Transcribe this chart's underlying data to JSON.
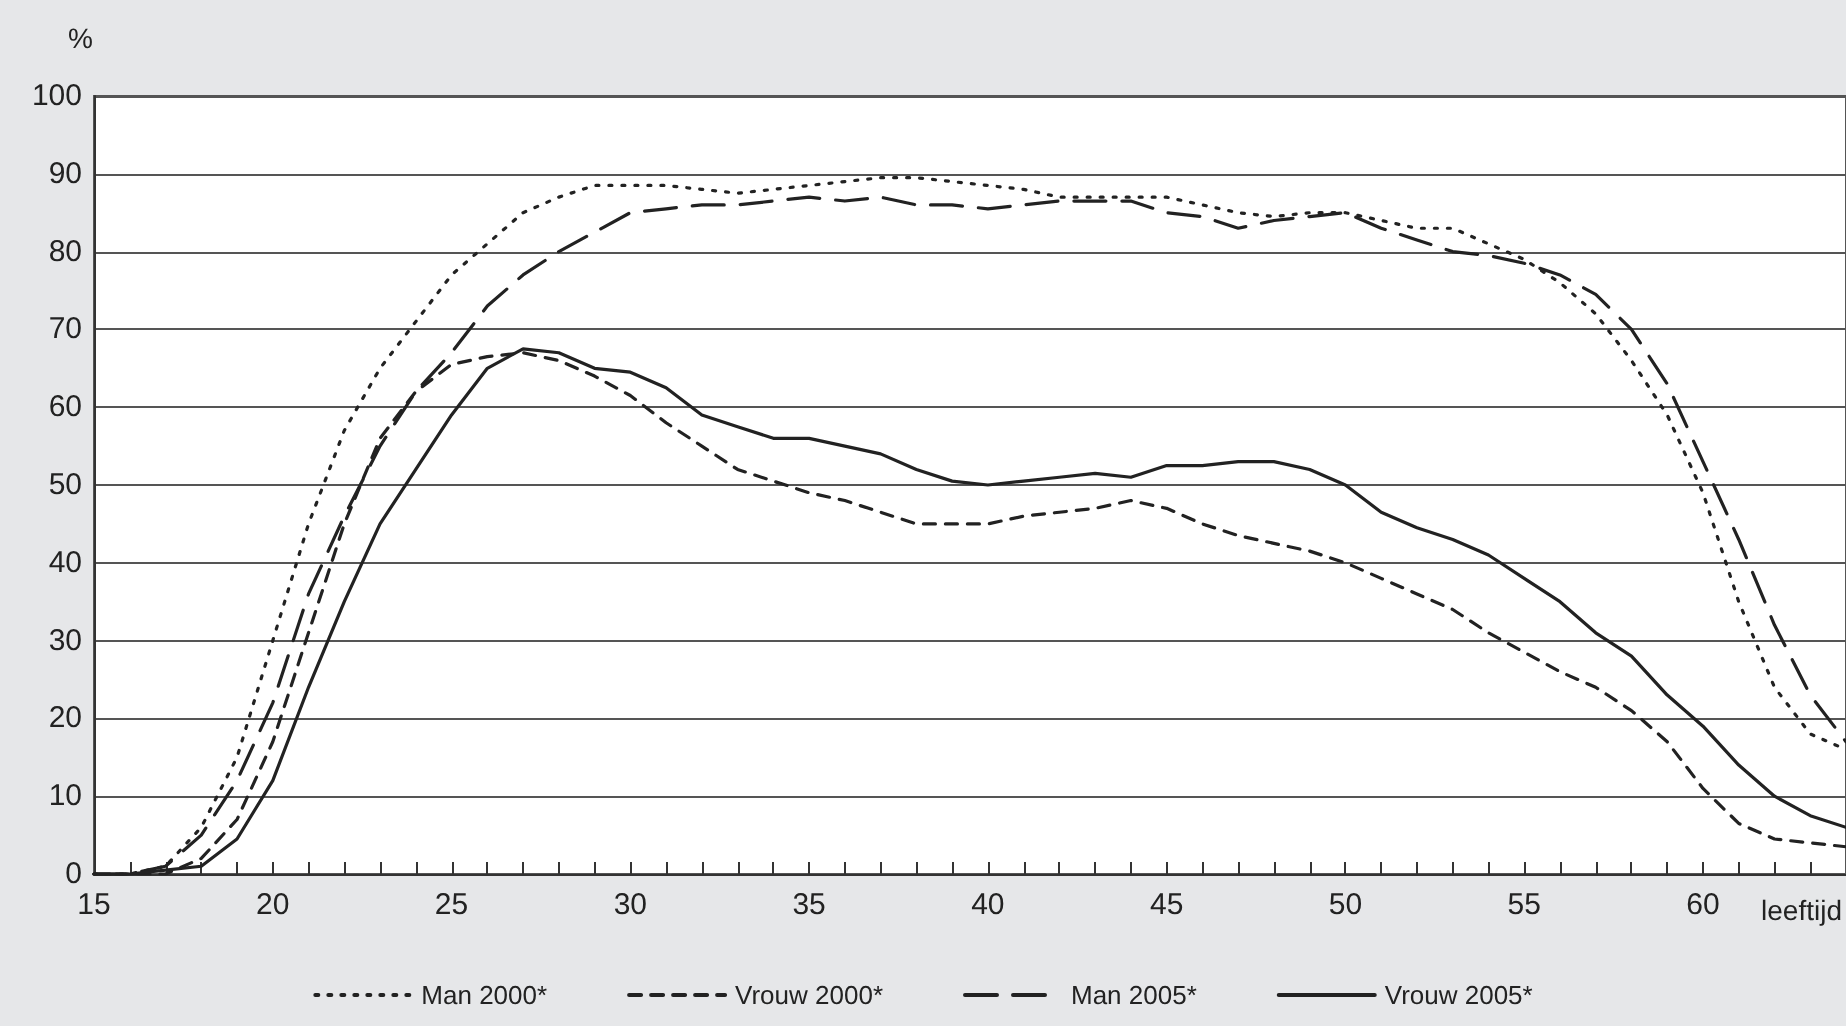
{
  "chart_data": {
    "type": "line",
    "ylabel": "%",
    "xlabel": "leeftijd",
    "x": [
      15,
      16,
      17,
      18,
      19,
      20,
      21,
      22,
      23,
      24,
      25,
      26,
      27,
      28,
      29,
      30,
      31,
      32,
      33,
      34,
      35,
      36,
      37,
      38,
      39,
      40,
      41,
      42,
      43,
      44,
      45,
      46,
      47,
      48,
      49,
      50,
      51,
      52,
      53,
      54,
      55,
      56,
      57,
      58,
      59,
      60,
      61,
      62,
      63,
      64
    ],
    "series": [
      {
        "name": "Man 2000*",
        "color": "#222222",
        "line_style": "dotted",
        "values": [
          0,
          0,
          1,
          6,
          15,
          30,
          45,
          57,
          65,
          71,
          77,
          81,
          85,
          87,
          88.5,
          88.5,
          88.5,
          88,
          87.5,
          88,
          88.5,
          89,
          89.5,
          89.5,
          89,
          88.5,
          88,
          87,
          87,
          87,
          87,
          86,
          85,
          84.5,
          85,
          85,
          84,
          83,
          83,
          81,
          79,
          76,
          72,
          66,
          59,
          49,
          35,
          24,
          18,
          16
        ]
      },
      {
        "name": "Vrouw 2000*",
        "color": "#222222",
        "line_style": "dashed",
        "values": [
          0,
          0,
          0,
          2,
          7,
          17,
          31,
          45,
          56,
          62,
          65.5,
          66.5,
          67,
          66,
          64,
          61.5,
          58,
          55,
          52,
          50.5,
          49,
          48,
          46.5,
          45,
          45,
          45,
          46,
          46.5,
          47,
          48,
          47,
          45,
          43.5,
          42.5,
          41.5,
          40,
          38,
          36,
          34,
          31,
          28.5,
          26,
          24,
          21,
          17,
          11,
          6.5,
          4.5,
          4,
          3.5
        ]
      },
      {
        "name": "Man 2005*",
        "color": "#222222",
        "line_style": "longdash",
        "values": [
          0,
          0,
          1,
          5,
          12,
          22,
          36,
          46,
          55,
          62,
          67,
          73,
          77,
          80,
          82.5,
          85,
          85.5,
          86,
          86,
          86.5,
          87,
          86.5,
          87,
          86,
          86,
          85.5,
          86,
          86.5,
          86.5,
          86.5,
          85,
          84.5,
          83,
          84,
          84.5,
          85,
          83,
          81.5,
          80,
          79.5,
          78.5,
          77,
          74.5,
          70,
          63,
          53,
          43,
          32,
          23,
          17
        ]
      },
      {
        "name": "Vrouw 2005*",
        "color": "#222222",
        "line_style": "solid",
        "values": [
          0,
          0,
          0.5,
          1,
          4.5,
          12,
          24,
          35,
          45,
          52,
          59,
          65,
          67.5,
          67,
          65,
          64.5,
          62.5,
          59,
          57.5,
          56,
          56,
          55,
          54,
          52,
          50.5,
          50,
          50.5,
          51,
          51.5,
          51,
          52.5,
          52.5,
          53,
          53,
          52,
          50,
          46.5,
          44.5,
          43,
          41,
          38,
          35,
          31,
          28,
          23,
          19,
          14,
          10,
          7.5,
          6
        ]
      }
    ],
    "xlim": [
      15,
      64
    ],
    "xticks": [
      15,
      {
        "value": 16,
        "label": null
      },
      {
        "value": 17,
        "label": null
      },
      {
        "value": 18,
        "label": null
      },
      {
        "value": 19,
        "label": null
      },
      20,
      {
        "value": 21,
        "label": null
      },
      {
        "value": 22,
        "label": null
      },
      {
        "value": 23,
        "label": null
      },
      {
        "value": 24,
        "label": null
      },
      25,
      {
        "value": 26,
        "label": null
      },
      {
        "value": 27,
        "label": null
      },
      {
        "value": 28,
        "label": null
      },
      {
        "value": 29,
        "label": null
      },
      30,
      {
        "value": 31,
        "label": null
      },
      {
        "value": 32,
        "label": null
      },
      {
        "value": 33,
        "label": null
      },
      {
        "value": 34,
        "label": null
      },
      35,
      {
        "value": 36,
        "label": null
      },
      {
        "value": 37,
        "label": null
      },
      {
        "value": 38,
        "label": null
      },
      {
        "value": 39,
        "label": null
      },
      40,
      {
        "value": 41,
        "label": null
      },
      {
        "value": 42,
        "label": null
      },
      {
        "value": 43,
        "label": null
      },
      {
        "value": 44,
        "label": null
      },
      45,
      {
        "value": 46,
        "label": null
      },
      {
        "value": 47,
        "label": null
      },
      {
        "value": 48,
        "label": null
      },
      {
        "value": 49,
        "label": null
      },
      50,
      {
        "value": 51,
        "label": null
      },
      {
        "value": 52,
        "label": null
      },
      {
        "value": 53,
        "label": null
      },
      {
        "value": 54,
        "label": null
      },
      55,
      {
        "value": 56,
        "label": null
      },
      {
        "value": 57,
        "label": null
      },
      {
        "value": 58,
        "label": null
      },
      {
        "value": 59,
        "label": null
      },
      60,
      {
        "value": 61,
        "label": null
      },
      {
        "value": 62,
        "label": null
      },
      {
        "value": 63,
        "label": null
      },
      {
        "value": 64,
        "label": null
      }
    ],
    "ylim": [
      0,
      100
    ],
    "yticks": [
      0,
      10,
      20,
      30,
      40,
      50,
      60,
      70,
      80,
      90,
      100
    ],
    "grid": "y",
    "legend": "bottom"
  }
}
